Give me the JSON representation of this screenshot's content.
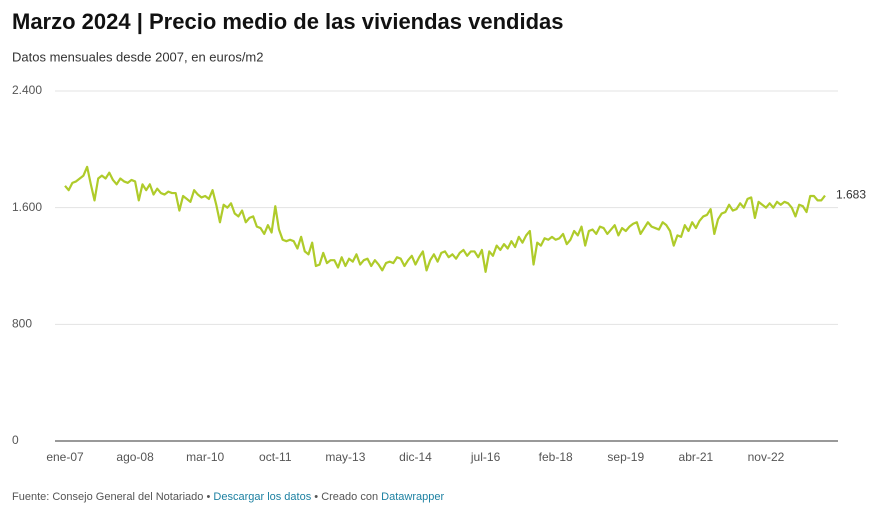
{
  "chart_data": {
    "type": "line",
    "title": "Marzo 2024 | Precio medio de las viviendas vendidas",
    "subtitle": "Datos mensuales desde 2007, en euros/m2",
    "categories": [
      "ene-07",
      null,
      null,
      null,
      null,
      null,
      null,
      null,
      null,
      null,
      null,
      null,
      null,
      null,
      null,
      null,
      null,
      null,
      null,
      "ago-08",
      null,
      null,
      null,
      null,
      null,
      null,
      null,
      null,
      null,
      null,
      null,
      null,
      null,
      null,
      null,
      null,
      null,
      null,
      "mar-10",
      null,
      null,
      null,
      null,
      null,
      null,
      null,
      null,
      null,
      null,
      null,
      null,
      null,
      null,
      null,
      null,
      null,
      null,
      "oct-11",
      null,
      null,
      null,
      null,
      null,
      null,
      null,
      null,
      null,
      null,
      null,
      null,
      null,
      null,
      null,
      null,
      null,
      null,
      "may-13",
      null,
      null,
      null,
      null,
      null,
      null,
      null,
      null,
      null,
      null,
      null,
      null,
      null,
      null,
      null,
      null,
      null,
      null,
      "dic-14",
      null,
      null,
      null,
      null,
      null,
      null,
      null,
      null,
      null,
      null,
      null,
      null,
      null,
      null,
      null,
      null,
      null,
      null,
      "jul-16",
      null,
      null,
      null,
      null,
      null,
      null,
      null,
      null,
      null,
      null,
      null,
      null,
      null,
      null,
      null,
      null,
      null,
      null,
      "feb-18",
      null,
      null,
      null,
      null,
      null,
      null,
      null,
      null,
      null,
      null,
      null,
      null,
      null,
      null,
      null,
      null,
      null,
      null,
      "sep-19",
      null,
      null,
      null,
      null,
      null,
      null,
      null,
      null,
      null,
      null,
      null,
      null,
      null,
      null,
      null,
      null,
      null,
      null,
      "abr-21",
      null,
      null,
      null,
      null,
      null,
      null,
      null,
      null,
      null,
      null,
      null,
      null,
      null,
      null,
      null,
      null,
      null,
      null,
      "nov-22",
      null,
      null,
      null,
      null,
      null,
      null,
      null,
      null,
      null,
      null,
      null,
      null,
      null,
      null,
      null,
      null
    ],
    "values": [
      1750,
      1720,
      1770,
      1780,
      1800,
      1820,
      1880,
      1760,
      1650,
      1800,
      1820,
      1800,
      1840,
      1790,
      1760,
      1800,
      1780,
      1770,
      1790,
      1780,
      1650,
      1760,
      1720,
      1760,
      1690,
      1730,
      1700,
      1690,
      1710,
      1700,
      1700,
      1580,
      1680,
      1660,
      1640,
      1720,
      1690,
      1670,
      1680,
      1660,
      1720,
      1620,
      1500,
      1620,
      1600,
      1630,
      1560,
      1540,
      1580,
      1500,
      1530,
      1540,
      1470,
      1460,
      1420,
      1480,
      1430,
      1610,
      1450,
      1380,
      1370,
      1380,
      1370,
      1320,
      1400,
      1300,
      1280,
      1360,
      1200,
      1210,
      1290,
      1220,
      1240,
      1240,
      1190,
      1260,
      1200,
      1250,
      1230,
      1280,
      1210,
      1240,
      1250,
      1200,
      1240,
      1210,
      1170,
      1220,
      1230,
      1220,
      1260,
      1250,
      1200,
      1240,
      1270,
      1210,
      1260,
      1300,
      1170,
      1240,
      1280,
      1230,
      1290,
      1300,
      1260,
      1280,
      1250,
      1290,
      1310,
      1270,
      1300,
      1300,
      1260,
      1310,
      1160,
      1300,
      1270,
      1340,
      1310,
      1350,
      1320,
      1370,
      1330,
      1400,
      1360,
      1410,
      1440,
      1210,
      1360,
      1340,
      1390,
      1380,
      1400,
      1380,
      1390,
      1420,
      1350,
      1380,
      1440,
      1410,
      1470,
      1340,
      1440,
      1450,
      1420,
      1470,
      1460,
      1420,
      1450,
      1480,
      1410,
      1460,
      1440,
      1470,
      1490,
      1500,
      1420,
      1460,
      1500,
      1470,
      1460,
      1450,
      1500,
      1480,
      1440,
      1340,
      1410,
      1400,
      1480,
      1440,
      1500,
      1460,
      1510,
      1540,
      1550,
      1590,
      1420,
      1520,
      1560,
      1570,
      1620,
      1580,
      1590,
      1630,
      1600,
      1660,
      1670,
      1530,
      1640,
      1620,
      1600,
      1630,
      1600,
      1640,
      1620,
      1640,
      1630,
      1600,
      1540,
      1620,
      1610,
      1570,
      1680,
      1680,
      1650,
      1650,
      1683
    ],
    "value_labels": [
      null,
      null,
      null,
      null,
      null,
      null,
      null,
      null,
      null,
      null,
      null,
      null,
      null,
      null,
      null,
      null,
      null,
      null,
      null,
      null,
      null,
      null,
      null,
      null,
      null,
      null,
      null,
      null,
      null,
      null,
      null,
      null,
      null,
      null,
      null,
      null,
      null,
      null,
      null,
      null,
      null,
      null,
      null,
      null,
      null,
      null,
      null,
      null,
      null,
      null,
      null,
      null,
      null,
      null,
      null,
      null,
      null,
      null,
      null,
      null,
      null,
      null,
      null,
      null,
      null,
      null,
      null,
      null,
      null,
      null,
      null,
      null,
      null,
      null,
      null,
      null,
      null,
      null,
      null,
      null,
      null,
      null,
      null,
      null,
      null,
      null,
      null,
      null,
      null,
      null,
      null,
      null,
      null,
      null,
      null,
      null,
      null,
      null,
      null,
      null,
      null,
      null,
      null,
      null,
      null,
      null,
      null,
      null,
      null,
      null,
      null,
      null,
      null,
      null,
      null,
      null,
      null,
      null,
      null,
      null,
      null,
      null,
      null,
      null,
      null,
      null,
      null,
      null,
      null,
      null,
      null,
      null,
      null,
      null,
      null,
      null,
      null,
      null,
      null,
      null,
      null,
      null,
      null,
      null,
      null,
      null,
      null,
      null,
      null,
      null,
      null,
      null,
      null,
      null,
      null,
      null,
      null,
      null,
      null,
      null,
      null,
      null,
      null,
      null,
      null,
      null,
      null,
      null,
      null,
      null,
      null,
      null,
      null,
      null,
      null,
      null,
      null,
      null,
      null,
      null,
      null,
      null,
      null,
      null,
      null,
      null,
      null,
      null,
      null,
      null,
      null,
      null,
      null,
      null,
      null,
      null,
      null,
      null,
      null,
      null,
      null,
      null,
      null,
      null,
      null,
      null,
      "1.683"
    ],
    "color": "#afcb2a",
    "ylim": [
      0,
      2400
    ],
    "yticks": [
      0,
      800,
      {
        "value": 1600,
        "label": "1.600"
      },
      {
        "value": 2400,
        "label": "2.400"
      }
    ],
    "grid": true
  },
  "footer": {
    "source": "Fuente: Consejo General del Notariado",
    "separator": "•",
    "download": "Descargar los datos",
    "created": "Creado con",
    "tool": "Datawrapper"
  }
}
